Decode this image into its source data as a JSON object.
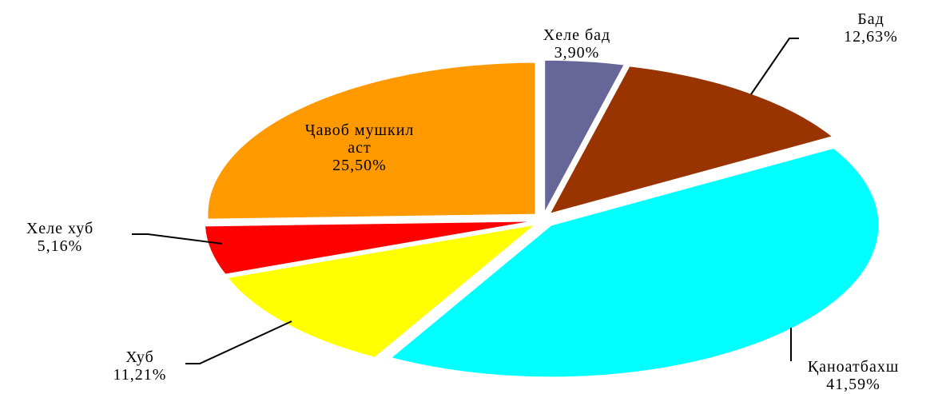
{
  "chart_data": {
    "type": "pie",
    "categories": [
      "Хеле бад",
      "Бад",
      "Қаноатбахш",
      "Хуб",
      "Хеле хуб",
      "Ҷавоб мушкил аст"
    ],
    "values": [
      3.9,
      12.63,
      41.59,
      11.21,
      5.16,
      25.5
    ],
    "value_labels": [
      "3,90%",
      "12,63%",
      "41,59%",
      "11,21%",
      "5,16%",
      "25,50%"
    ],
    "colors": [
      "#666699",
      "#993300",
      "#00ffff",
      "#ffff00",
      "#ff0000",
      "#ff9900"
    ]
  }
}
